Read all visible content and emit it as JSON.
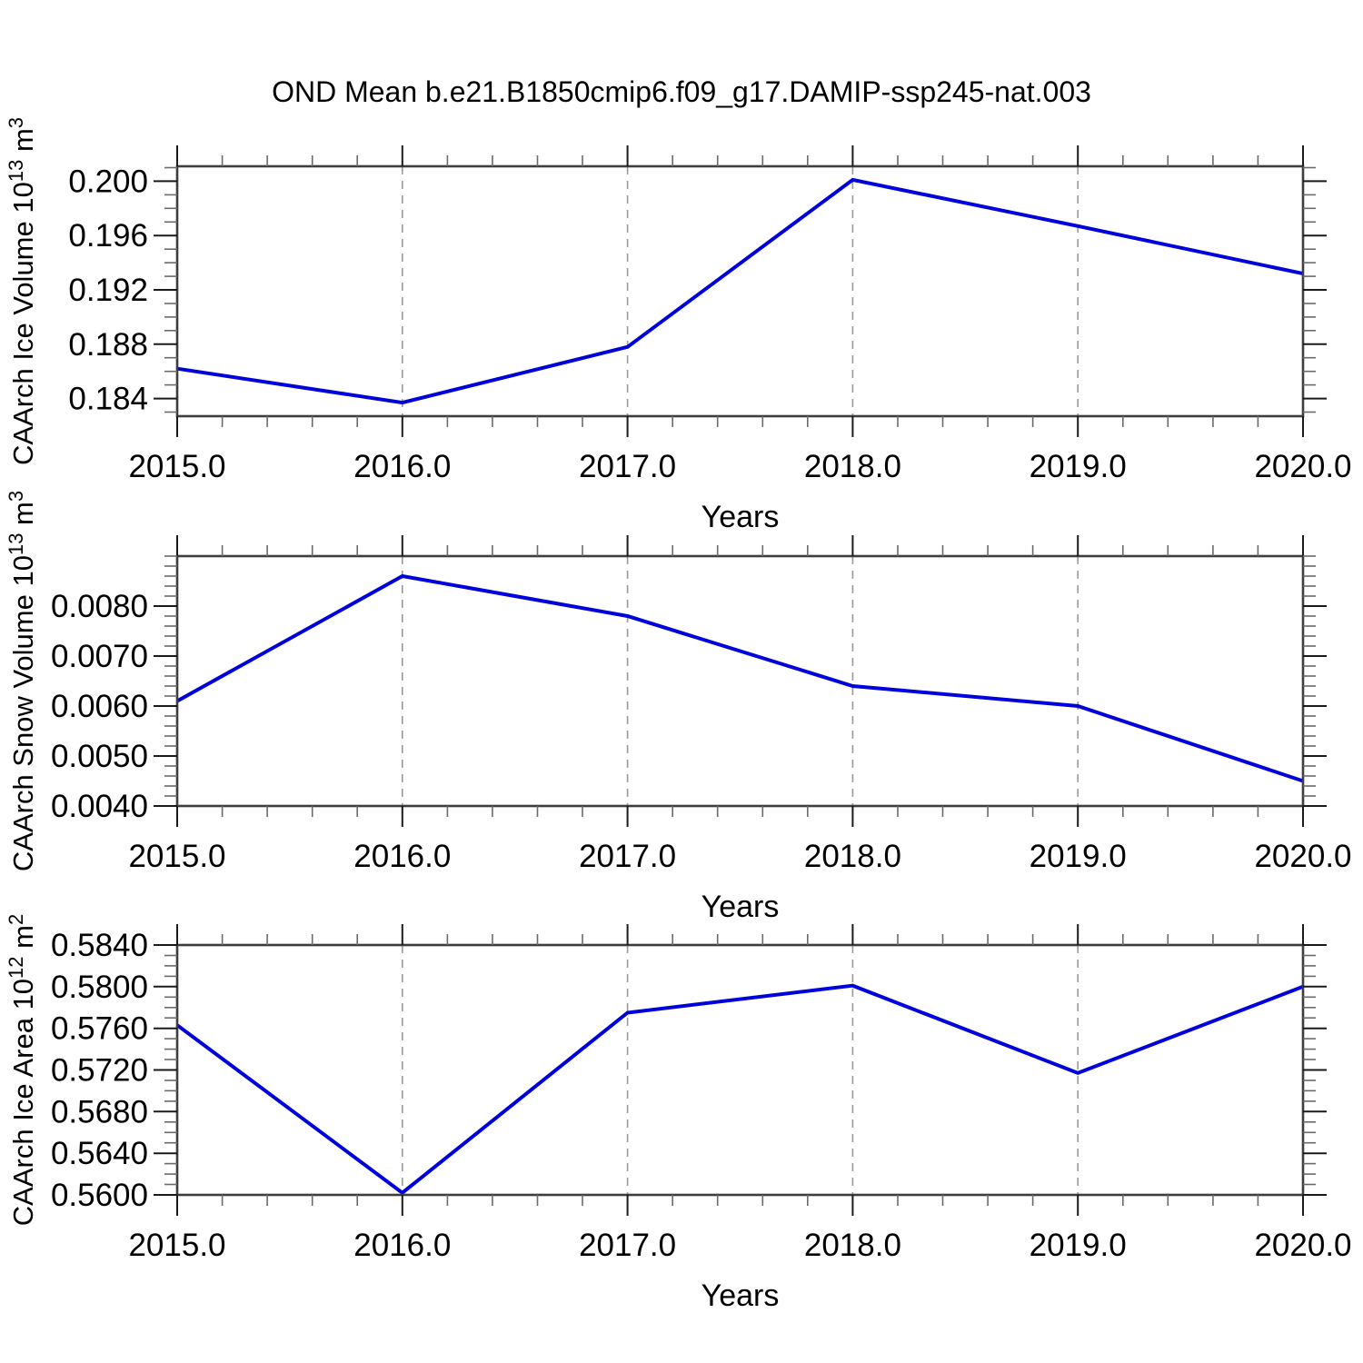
{
  "title": "OND Mean b.e21.B1850cmip6.f09_g17.DAMIP-ssp245-nat.003",
  "colors": {
    "line": "#0000dc",
    "frame": "#3d3d3d",
    "major_tick": "#1a1a1a",
    "minor_tick": "#6a6a6a",
    "grid": "#9a9a9a",
    "background": "#ffffff",
    "text": "#000000"
  },
  "chart_data": [
    {
      "type": "line",
      "x": [
        2015,
        2016,
        2017,
        2018,
        2019,
        2020
      ],
      "values": [
        0.1862,
        0.1837,
        0.1878,
        0.2001,
        0.1967,
        0.1932
      ],
      "xlabel": "Years",
      "ylabel_prefix": "CAArch Ice Volume 10",
      "ylabel_exp": "13",
      "ylabel_unit": " m",
      "ylabel_unit_exp": "3",
      "xlim": [
        2015,
        2020
      ],
      "ylim": [
        0.1827,
        0.2011
      ],
      "xticks": [
        2015,
        2016,
        2017,
        2018,
        2019,
        2020
      ],
      "xtick_labels": [
        "2015.0",
        "2016.0",
        "2017.0",
        "2018.0",
        "2019.0",
        "2020.0"
      ],
      "x_minor_step": 0.2,
      "yticks": [
        0.184,
        0.188,
        0.192,
        0.196,
        0.2
      ],
      "ytick_labels": [
        "0.184",
        "0.188",
        "0.192",
        "0.196",
        "0.200"
      ],
      "y_minor_step": 0.001,
      "grid_x": [
        2016,
        2017,
        2018,
        2019
      ],
      "legend": "none",
      "grid": "vertical-dashed"
    },
    {
      "type": "line",
      "x": [
        2015,
        2016,
        2017,
        2018,
        2019,
        2020
      ],
      "values": [
        0.0061,
        0.0086,
        0.0078,
        0.0064,
        0.006,
        0.0045
      ],
      "xlabel": "Years",
      "ylabel_prefix": "CAArch Snow Volume 10",
      "ylabel_exp": "13",
      "ylabel_unit": " m",
      "ylabel_unit_exp": "3",
      "xlim": [
        2015,
        2020
      ],
      "ylim": [
        0.004,
        0.009
      ],
      "xticks": [
        2015,
        2016,
        2017,
        2018,
        2019,
        2020
      ],
      "xtick_labels": [
        "2015.0",
        "2016.0",
        "2017.0",
        "2018.0",
        "2019.0",
        "2020.0"
      ],
      "x_minor_step": 0.2,
      "yticks": [
        0.004,
        0.005,
        0.006,
        0.007,
        0.008
      ],
      "ytick_labels": [
        "0.0040",
        "0.0050",
        "0.0060",
        "0.0070",
        "0.0080"
      ],
      "y_minor_step": 0.0002,
      "grid_x": [
        2016,
        2017,
        2018,
        2019
      ],
      "legend": "none",
      "grid": "vertical-dashed"
    },
    {
      "type": "line",
      "x": [
        2015,
        2016,
        2017,
        2018,
        2019,
        2020
      ],
      "values": [
        0.5763,
        0.5602,
        0.5775,
        0.5801,
        0.5717,
        0.58
      ],
      "xlabel": "Years",
      "ylabel_prefix": "CAArch Ice Area 10",
      "ylabel_exp": "12",
      "ylabel_unit": " m",
      "ylabel_unit_exp": "2",
      "xlim": [
        2015,
        2020
      ],
      "ylim": [
        0.56,
        0.584
      ],
      "xticks": [
        2015,
        2016,
        2017,
        2018,
        2019,
        2020
      ],
      "xtick_labels": [
        "2015.0",
        "2016.0",
        "2017.0",
        "2018.0",
        "2019.0",
        "2020.0"
      ],
      "x_minor_step": 0.2,
      "yticks": [
        0.56,
        0.564,
        0.568,
        0.572,
        0.576,
        0.58,
        0.584
      ],
      "ytick_labels": [
        "0.5600",
        "0.5640",
        "0.5680",
        "0.5720",
        "0.5760",
        "0.5800",
        "0.5840"
      ],
      "y_minor_step": 0.001,
      "grid_x": [
        2016,
        2017,
        2018,
        2019
      ],
      "legend": "none",
      "grid": "vertical-dashed"
    }
  ]
}
